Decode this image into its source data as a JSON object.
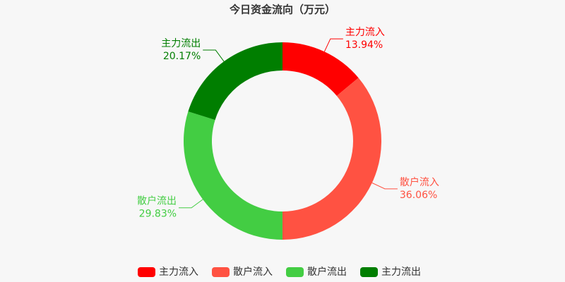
{
  "chart_data": {
    "type": "donut",
    "title": "今日资金流向（万元）",
    "categories": [
      "主力流入",
      "散户流入",
      "散户流出",
      "主力流出"
    ],
    "values": [
      13.94,
      36.06,
      29.83,
      20.17
    ],
    "value_labels": [
      "13.94%",
      "36.06%",
      "29.83%",
      "20.17%"
    ],
    "colors": [
      "#ff0000",
      "#ff5242",
      "#43cd43",
      "#007e00"
    ],
    "legend": "bottom"
  }
}
